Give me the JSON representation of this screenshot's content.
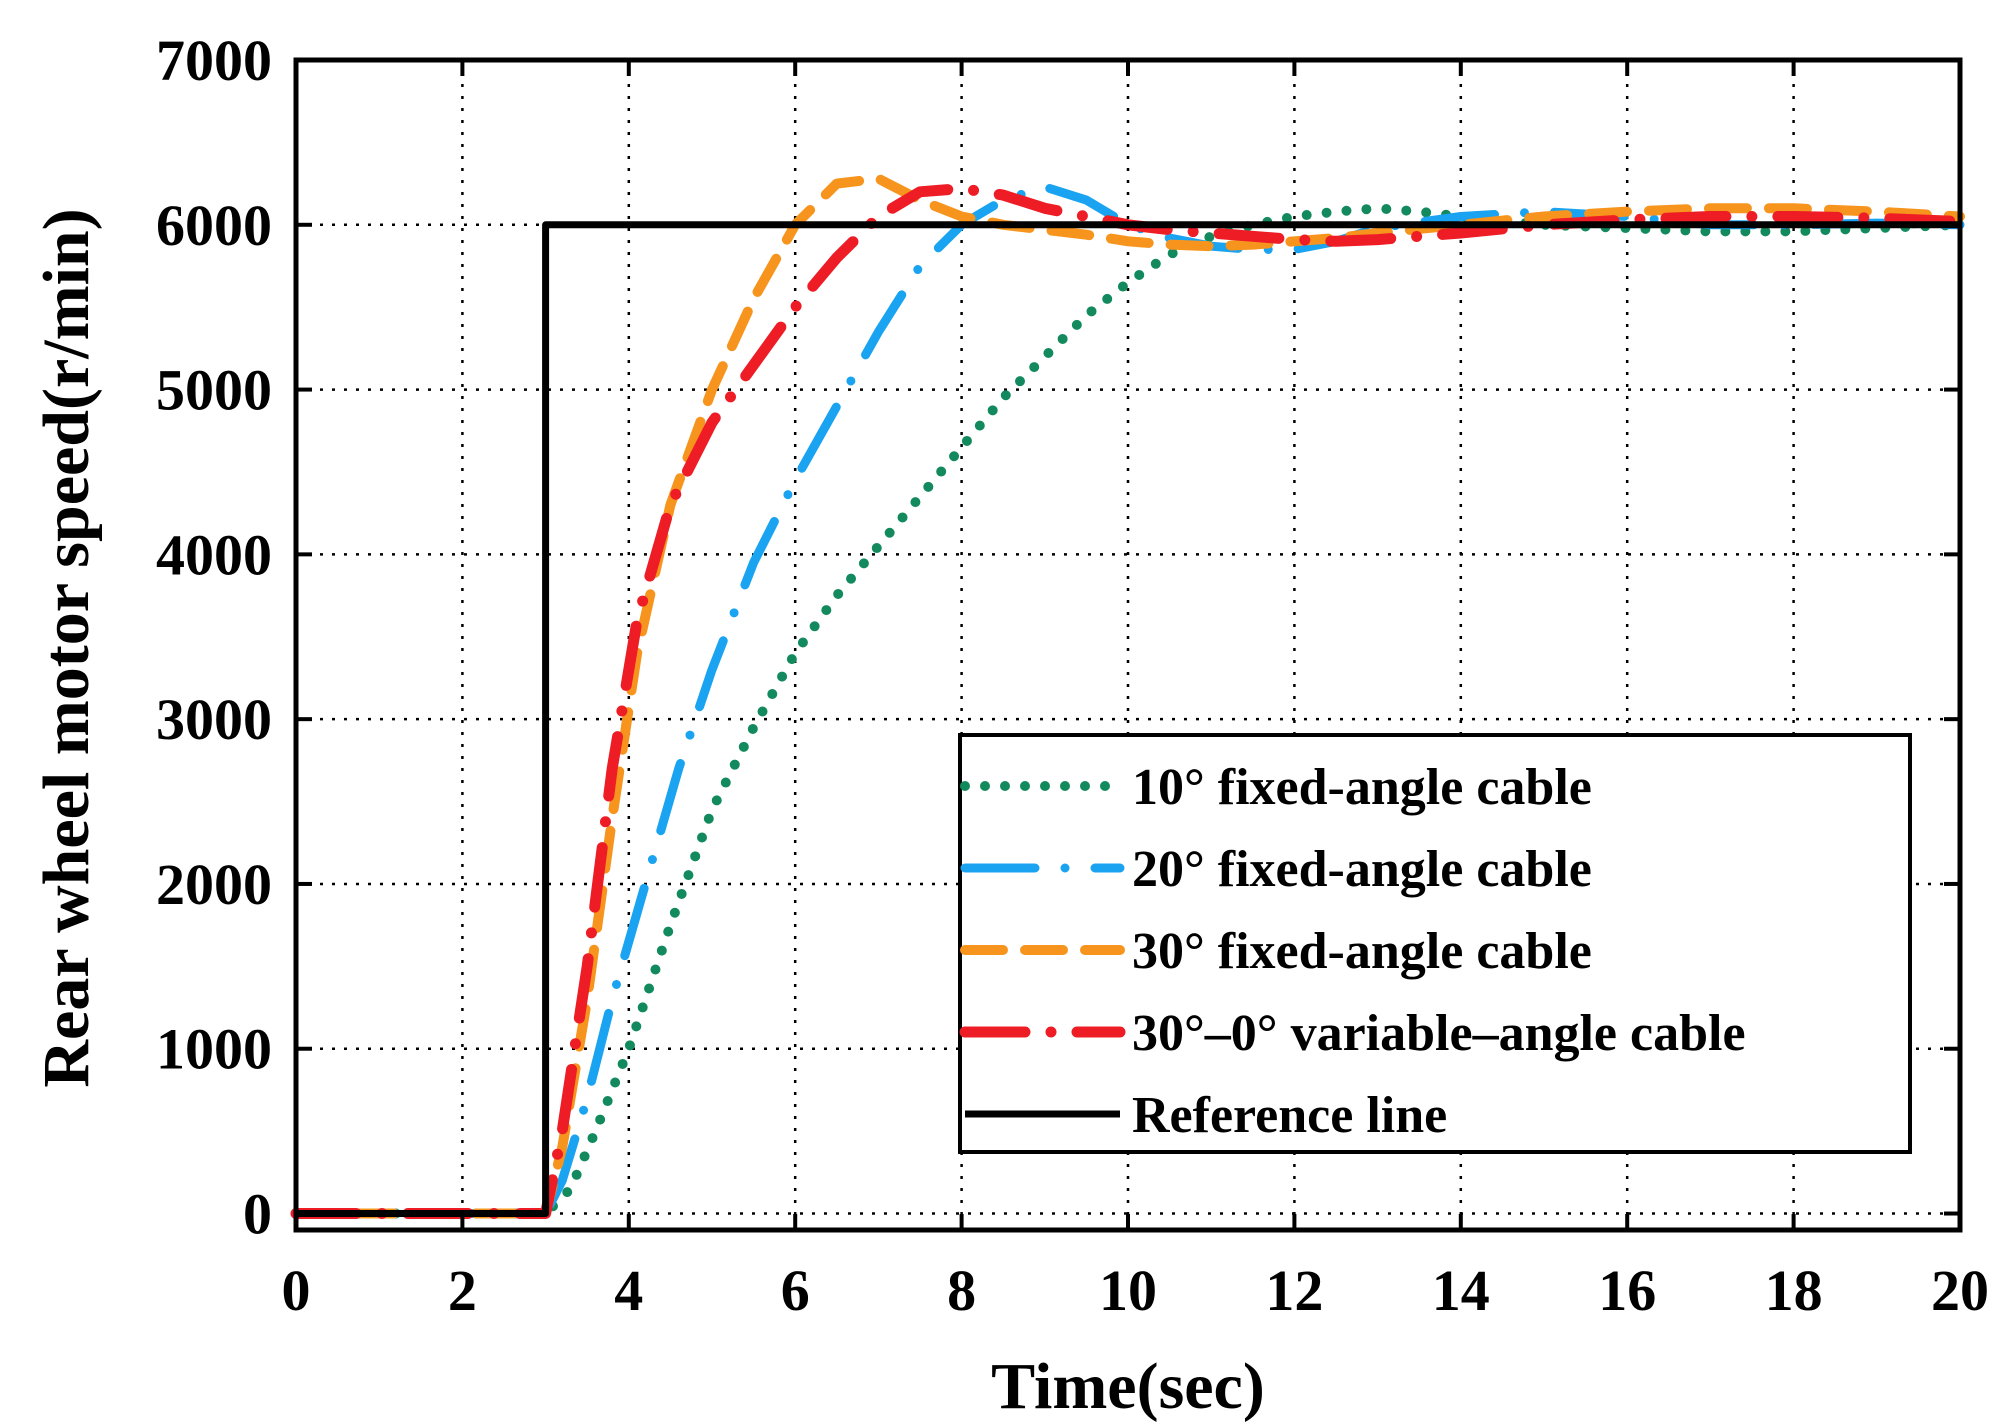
{
  "chart_data": {
    "type": "line",
    "title": "",
    "xlabel": "Time(sec)",
    "ylabel": "Rear wheel motor speed(r/min)",
    "xlim": [
      0,
      20
    ],
    "ylim": [
      -100,
      7000
    ],
    "xticks": [
      0,
      2,
      4,
      6,
      8,
      10,
      12,
      14,
      16,
      18,
      20
    ],
    "yticks": [
      0,
      1000,
      2000,
      3000,
      4000,
      5000,
      6000,
      7000
    ],
    "grid": true,
    "legend_position": "lower-right",
    "series": [
      {
        "name": "10° fixed-angle cable",
        "color": "#138a5e",
        "style": "dotted",
        "x": [
          0,
          3,
          3.3,
          3.6,
          4,
          4.5,
          5,
          5.5,
          6,
          6.5,
          7,
          7.5,
          8,
          8.5,
          9,
          9.5,
          10,
          10.5,
          11,
          11.5,
          12,
          12.5,
          13,
          13.5,
          14,
          15,
          16,
          17,
          18,
          19,
          20
        ],
        "y": [
          0,
          0,
          150,
          500,
          1000,
          1750,
          2450,
          2950,
          3400,
          3750,
          4050,
          4350,
          4650,
          4950,
          5200,
          5450,
          5650,
          5820,
          5930,
          6000,
          6050,
          6080,
          6100,
          6080,
          6050,
          6000,
          5980,
          5960,
          5960,
          5980,
          6000
        ]
      },
      {
        "name": "20° fixed-angle cable",
        "color": "#1aa3f0",
        "style": "dash-dot",
        "x": [
          0,
          3,
          3.2,
          3.5,
          3.8,
          4.2,
          4.6,
          5,
          5.5,
          6,
          6.5,
          7,
          7.5,
          8,
          8.5,
          9,
          9.5,
          10,
          10.5,
          11,
          11.5,
          12,
          12.5,
          13,
          14,
          15,
          16,
          17,
          18,
          19,
          20
        ],
        "y": [
          0,
          0,
          200,
          700,
          1300,
          2000,
          2700,
          3300,
          3950,
          4450,
          4900,
          5350,
          5750,
          6000,
          6150,
          6230,
          6150,
          6000,
          5920,
          5870,
          5850,
          5850,
          5900,
          5980,
          6050,
          6080,
          6050,
          6000,
          6000,
          6010,
          6000
        ]
      },
      {
        "name": "30° fixed-angle cable",
        "color": "#f7941d",
        "style": "dashed",
        "x": [
          0,
          3,
          3.2,
          3.5,
          3.8,
          4.1,
          4.5,
          5,
          5.5,
          6,
          6.5,
          7,
          7.5,
          8,
          8.5,
          9,
          9.5,
          10,
          10.5,
          11,
          11.5,
          12,
          12.5,
          13,
          14,
          15,
          16,
          17,
          18,
          19,
          20
        ],
        "y": [
          0,
          0,
          400,
          1300,
          2400,
          3400,
          4300,
          5000,
          5550,
          6000,
          6250,
          6280,
          6150,
          6050,
          6000,
          5970,
          5940,
          5900,
          5880,
          5870,
          5880,
          5900,
          5920,
          5950,
          6000,
          6050,
          6080,
          6100,
          6100,
          6080,
          6050
        ]
      },
      {
        "name": "30°–0° variable–angle cable",
        "color": "#ee1c25",
        "style": "long-dash-dot",
        "x": [
          0,
          3,
          3.2,
          3.5,
          3.8,
          4.1,
          4.5,
          5,
          5.5,
          6,
          6.5,
          7,
          7.5,
          8,
          8.5,
          9,
          9.5,
          10,
          10.5,
          11,
          11.5,
          12,
          12.5,
          13,
          14,
          15,
          16,
          17,
          18,
          19,
          20
        ],
        "y": [
          0,
          0,
          500,
          1500,
          2700,
          3600,
          4300,
          4800,
          5150,
          5500,
          5800,
          6050,
          6200,
          6220,
          6180,
          6100,
          6050,
          6000,
          5970,
          5950,
          5930,
          5910,
          5900,
          5910,
          5950,
          6000,
          6030,
          6050,
          6050,
          6040,
          6020
        ]
      },
      {
        "name": "Reference line",
        "color": "#000000",
        "style": "solid",
        "x": [
          0,
          3,
          3,
          20
        ],
        "y": [
          0,
          0,
          6000,
          6000
        ]
      }
    ]
  }
}
